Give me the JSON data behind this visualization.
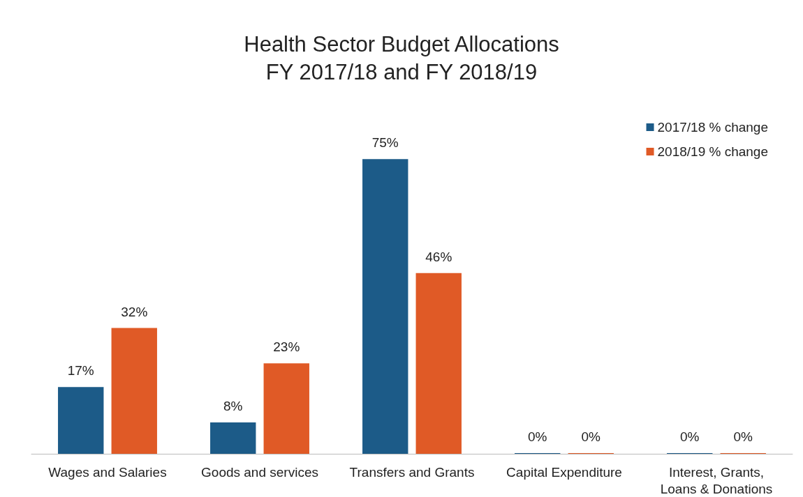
{
  "chart_data": {
    "type": "bar",
    "title": "Health Sector Budget Allocations\nFY 2017/18 and FY 2018/19",
    "categories": [
      "Wages and Salaries",
      "Goods and services",
      "Transfers and Grants",
      "Capital Expenditure",
      "Interest, Grants,\nLoans & Donations"
    ],
    "series": [
      {
        "name": "2017/18 % change",
        "color": "#1c5b88",
        "values": [
          17,
          8,
          75,
          0,
          0
        ],
        "value_labels": [
          "17%",
          "8%",
          "75%",
          "0%",
          "0%"
        ]
      },
      {
        "name": "2018/19 % change",
        "color": "#e05a26",
        "values": [
          32,
          23,
          46,
          0,
          0
        ],
        "value_labels": [
          "32%",
          "23%",
          "46%",
          "0%",
          "0%"
        ]
      }
    ],
    "legend": "top right"
  }
}
